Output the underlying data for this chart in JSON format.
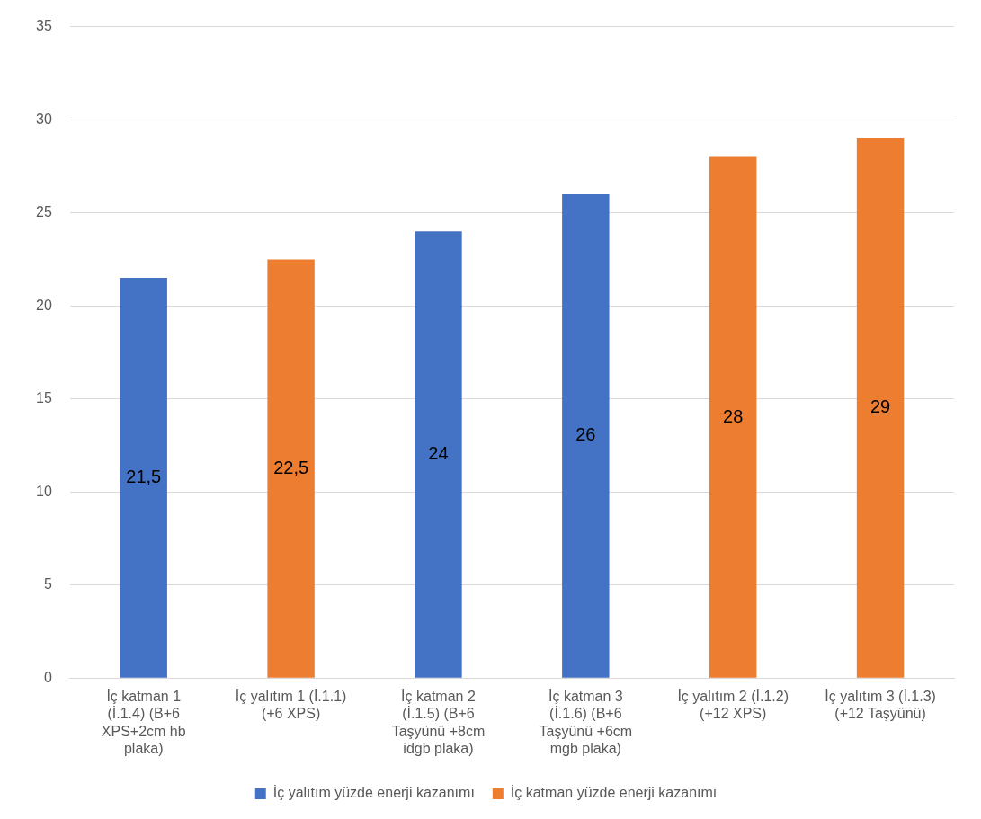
{
  "chart_data": {
    "type": "bar",
    "categories": [
      "İç katman 1 (İ.1.4) (B+6 XPS+2cm hb plaka)",
      "İç yalıtım 1 (İ.1.1) (+6 XPS)",
      "İç katman 2 (İ.1.5) (B+6 Taşyünü +8cm idgb plaka)",
      "İç katman 3 (İ.1.6) (B+6 Taşyünü +6cm mgb plaka)",
      "İç yalıtım 2 (İ.1.2) (+12 XPS)",
      "İç yalıtım 3 (İ.1.3) (+12 Taşyünü)"
    ],
    "series": [
      {
        "name": "İç yalıtım yüzde enerji kazanımı",
        "color": "#4472c4",
        "values": [
          21.5,
          null,
          24,
          26,
          null,
          null
        ],
        "value_labels": [
          "21,5",
          null,
          "24",
          "26",
          null,
          null
        ]
      },
      {
        "name": "İç katman yüzde enerji kazanımı",
        "color": "#ed7d31",
        "values": [
          null,
          22.5,
          null,
          null,
          28,
          29
        ],
        "value_labels": [
          null,
          "22,5",
          null,
          null,
          "28",
          "29"
        ]
      }
    ],
    "ylim": [
      0,
      35
    ],
    "yticks": [
      0,
      5,
      10,
      15,
      20,
      25,
      30,
      35
    ],
    "grid": "y",
    "legend": "bottom"
  }
}
